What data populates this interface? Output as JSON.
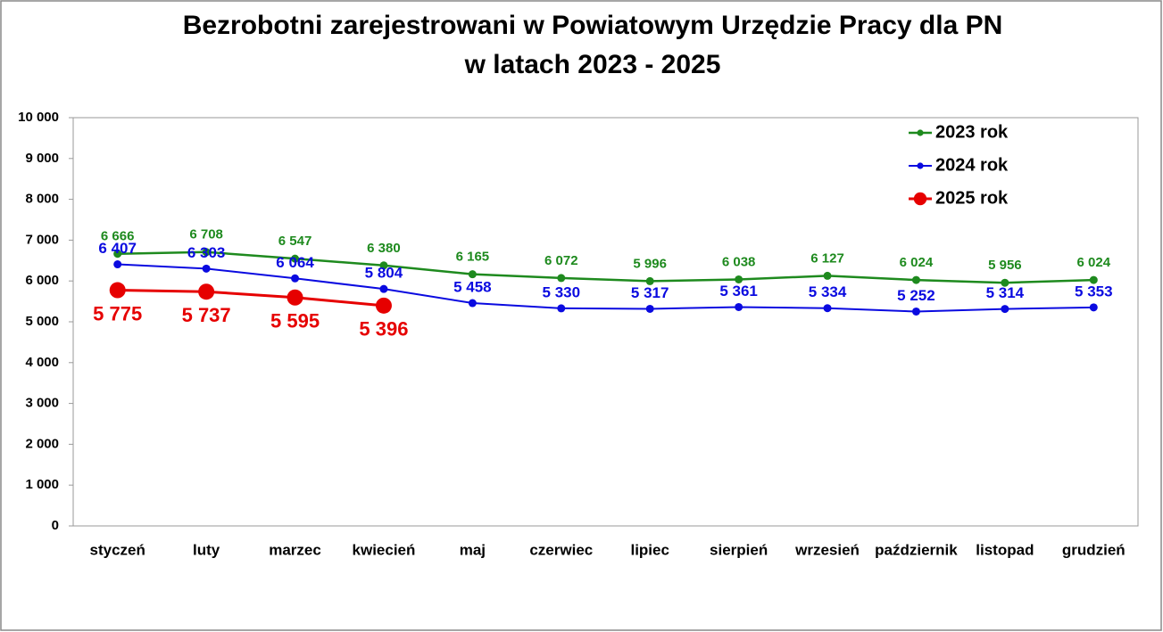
{
  "chart_data": {
    "type": "line",
    "title": [
      "Bezrobotni zarejestrowani w Powiatowym Urzędzie Pracy dla PN",
      "w latach 2023 - 2025"
    ],
    "categories": [
      "styczeń",
      "luty",
      "marzec",
      "kwiecień",
      "maj",
      "czerwiec",
      "lipiec",
      "sierpień",
      "wrzesień",
      "październik",
      "listopad",
      "grudzień"
    ],
    "series": [
      {
        "name": "2023 rok",
        "color": "#1e8a1e",
        "values": [
          6666,
          6708,
          6547,
          6380,
          6165,
          6072,
          5996,
          6038,
          6127,
          6024,
          5956,
          6024
        ],
        "value_labels": [
          "6 666",
          "6 708",
          "6 547",
          "6 380",
          "6 165",
          "6 072",
          "5 996",
          "6 038",
          "6 127",
          "6 024",
          "5 956",
          "6 024"
        ]
      },
      {
        "name": "2024 rok",
        "color": "#0a0ae0",
        "values": [
          6407,
          6303,
          6064,
          5804,
          5458,
          5330,
          5317,
          5361,
          5334,
          5252,
          5314,
          5353
        ],
        "value_labels": [
          "6 407",
          "6 303",
          "6 064",
          "5 804",
          "5 458",
          "5 330",
          "5 317",
          "5 361",
          "5 334",
          "5 252",
          "5 314",
          "5 353"
        ]
      },
      {
        "name": "2025 rok",
        "color": "#e60000",
        "values": [
          5775,
          5737,
          5595,
          5396,
          null,
          null,
          null,
          null,
          null,
          null,
          null,
          null
        ],
        "value_labels": [
          "5 775",
          "5 737",
          "5 595",
          "5 396",
          null,
          null,
          null,
          null,
          null,
          null,
          null,
          null
        ]
      }
    ],
    "ylim": [
      0,
      10000
    ],
    "yticks": [
      0,
      {
        "value": 1000,
        "label": "1 000"
      },
      {
        "value": 2000,
        "label": "2 000"
      },
      {
        "value": 3000,
        "label": "3 000"
      },
      {
        "value": 4000,
        "label": "4 000"
      },
      {
        "value": 5000,
        "label": "5 000"
      },
      {
        "value": 6000,
        "label": "6 000"
      },
      {
        "value": 7000,
        "label": "7 000"
      },
      {
        "value": 8000,
        "label": "8 000"
      },
      {
        "value": 9000,
        "label": "9 000"
      },
      {
        "value": 10000,
        "label": "10 000"
      }
    ],
    "grid": false,
    "legend": "upper right"
  }
}
